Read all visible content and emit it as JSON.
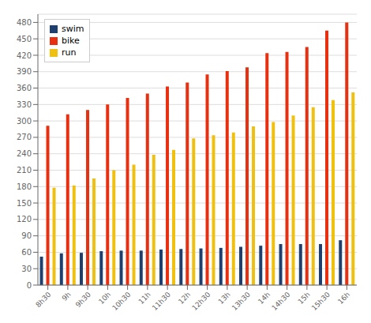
{
  "chart_data": {
    "type": "bar",
    "categories": [
      "8h30",
      "9h",
      "9h30",
      "10h",
      "10h30",
      "11h",
      "11h30",
      "12h",
      "12h30",
      "13h",
      "13h30",
      "14h",
      "14h30",
      "15h",
      "15h30",
      "16h"
    ],
    "series": [
      {
        "name": "swim",
        "color": "#1f3f6e",
        "values": [
          52,
          58,
          59,
          62,
          63,
          63,
          65,
          66,
          67,
          68,
          70,
          72,
          75,
          75,
          75,
          82
        ]
      },
      {
        "name": "bike",
        "color": "#e83010",
        "values": [
          291,
          312,
          320,
          330,
          342,
          350,
          363,
          370,
          385,
          391,
          398,
          424,
          426,
          435,
          465,
          480
        ]
      },
      {
        "name": "run",
        "color": "#f0c010",
        "values": [
          178,
          182,
          195,
          210,
          220,
          238,
          247,
          268,
          274,
          279,
          290,
          298,
          310,
          325,
          338,
          352
        ]
      }
    ],
    "ylim": [
      0,
      495
    ],
    "yticks": [
      0,
      30,
      60,
      90,
      120,
      150,
      180,
      210,
      240,
      270,
      300,
      330,
      360,
      390,
      420,
      450,
      480
    ],
    "grid": true,
    "legend": "upper left"
  }
}
